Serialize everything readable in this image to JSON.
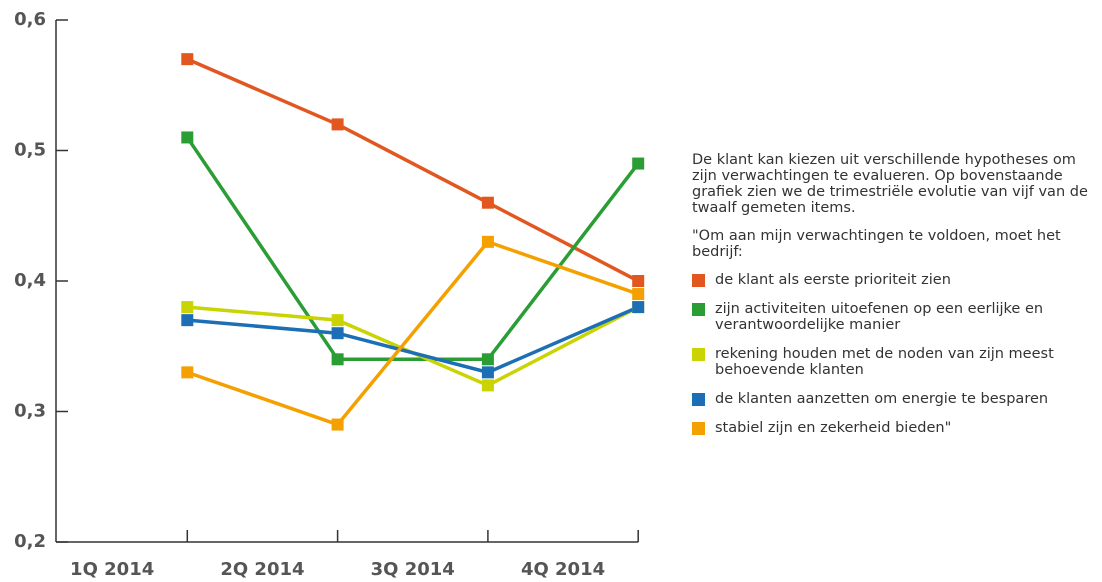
{
  "chart_data": {
    "type": "line",
    "categories": [
      "1Q 2014",
      "2Q 2014",
      "3Q 2014",
      "4Q 2014"
    ],
    "series": [
      {
        "name": "de klant als eerste prioriteit zien",
        "color": "#e2561f",
        "values": [
          0.57,
          0.52,
          0.46,
          0.4
        ]
      },
      {
        "name": "zijn activiteiten uitoefenen op een eerlijke en verantwoordelijke manier",
        "color": "#2a9d34",
        "values": [
          0.51,
          0.34,
          0.34,
          0.49
        ]
      },
      {
        "name": "rekening houden met de noden van zijn meest behoevende klanten",
        "color": "#c9d402",
        "values": [
          0.38,
          0.37,
          0.32,
          0.38
        ]
      },
      {
        "name": "de klanten aanzetten om energie te besparen",
        "color": "#1d6fb5",
        "values": [
          0.37,
          0.36,
          0.33,
          0.38
        ]
      },
      {
        "name": "stabiel zijn en zekerheid bieden\"",
        "color": "#f4a000",
        "values": [
          0.33,
          0.29,
          0.43,
          0.39
        ]
      }
    ],
    "ylim": [
      0.2,
      0.6
    ],
    "yticks": [
      {
        "value": 0.2,
        "label": "0,2"
      },
      {
        "value": 0.3,
        "label": "0,3"
      },
      {
        "value": 0.4,
        "label": "0,4"
      },
      {
        "value": 0.5,
        "label": "0,5"
      },
      {
        "value": 0.6,
        "label": "0,6"
      }
    ],
    "description": "De klant kan kiezen uit verschillende hypotheses om zijn verwachtingen te evalueren. Op bovenstaande grafiek zien we de trimestriële evolutie van vijf van de twaalf gemeten items.",
    "legend_title": "\"Om aan mijn verwachtingen te voldoen, moet het bedrijf:",
    "legend_position": "right"
  }
}
